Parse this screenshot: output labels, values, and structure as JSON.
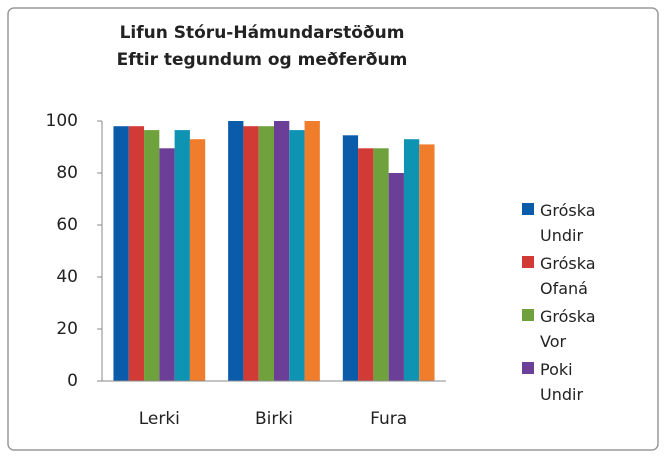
{
  "chart_data": {
    "type": "bar",
    "title": "Lifun Stóru-Hámundarstöðum",
    "subtitle": "Eftir tegundum og meðferðum",
    "categories": [
      "Lerki",
      "Birki",
      "Fura"
    ],
    "series": [
      {
        "name": "Gróska Undir",
        "color": "#0b5bab",
        "values": [
          98,
          100,
          94.5
        ]
      },
      {
        "name": "Gróska Ofaná",
        "color": "#d23a36",
        "values": [
          98,
          98,
          89.5
        ]
      },
      {
        "name": "Gróska Vor",
        "color": "#6fa23c",
        "values": [
          96.5,
          98,
          89.5
        ]
      },
      {
        "name": "Poki Undir",
        "color": "#6b3f97",
        "values": [
          89.5,
          100,
          80
        ]
      },
      {
        "color": "#0e93b3",
        "values": [
          96.5,
          96.5,
          93
        ]
      },
      {
        "color": "#f07d2c",
        "values": [
          93,
          100,
          91
        ]
      }
    ],
    "ylim": [
      0,
      100
    ],
    "yticks": [
      0,
      20,
      40,
      60,
      80,
      100
    ],
    "grid": false
  }
}
